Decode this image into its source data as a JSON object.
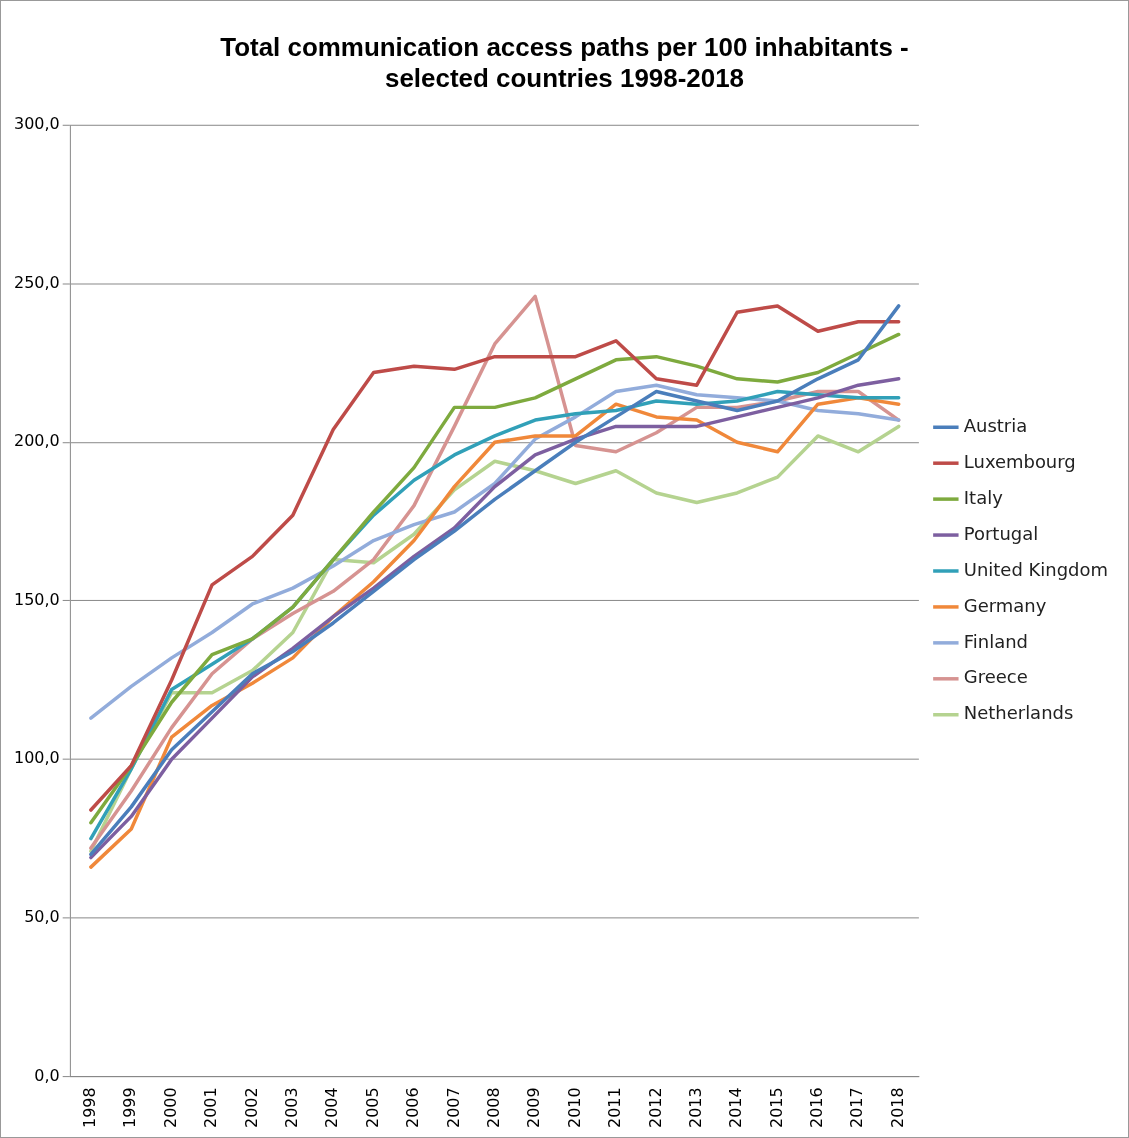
{
  "chart_data": {
    "type": "line",
    "title": "Total communication access paths per 100 inhabitants - selected countries 1998-2018",
    "categories": [
      "1998",
      "1999",
      "2000",
      "2001",
      "2002",
      "2003",
      "2004",
      "2005",
      "2006",
      "2007",
      "2008",
      "2009",
      "2010",
      "2011",
      "2012",
      "2013",
      "2014",
      "2015",
      "2016",
      "2017",
      "2018"
    ],
    "series": [
      {
        "name": "Austria",
        "color": "#4a7ebb",
        "values": [
          70,
          85,
          103,
          115,
          127,
          134,
          143,
          153,
          163,
          172,
          182,
          191,
          200,
          208,
          216,
          213,
          210,
          213,
          220,
          226,
          243
        ]
      },
      {
        "name": "Luxembourg",
        "color": "#be4b48",
        "values": [
          84,
          98,
          125,
          155,
          164,
          177,
          204,
          222,
          224,
          223,
          227,
          227,
          227,
          232,
          220,
          218,
          241,
          243,
          235,
          238,
          238
        ]
      },
      {
        "name": "Italy",
        "color": "#7eaa3e",
        "values": [
          80,
          98,
          118,
          133,
          138,
          148,
          163,
          178,
          192,
          211,
          211,
          214,
          220,
          226,
          227,
          224,
          220,
          219,
          222,
          228,
          234
        ]
      },
      {
        "name": "Portugal",
        "color": "#7d5fa0",
        "values": [
          69,
          82,
          100,
          113,
          126,
          135,
          145,
          154,
          164,
          173,
          186,
          196,
          201,
          205,
          205,
          205,
          208,
          211,
          214,
          218,
          220
        ]
      },
      {
        "name": "United Kingdom",
        "color": "#31a0b8",
        "values": [
          75,
          97,
          122,
          130,
          138,
          148,
          163,
          177,
          188,
          196,
          202,
          207,
          209,
          210,
          213,
          212,
          213,
          216,
          215,
          214,
          214
        ]
      },
      {
        "name": "Germany",
        "color": "#f0883a",
        "values": [
          66,
          78,
          107,
          117,
          124,
          132,
          145,
          156,
          169,
          186,
          200,
          202,
          202,
          212,
          208,
          207,
          200,
          197,
          212,
          214,
          212
        ]
      },
      {
        "name": "Finland",
        "color": "#92acdb",
        "values": [
          113,
          123,
          132,
          140,
          149,
          154,
          161,
          169,
          174,
          178,
          187,
          201,
          208,
          216,
          218,
          215,
          214,
          213,
          210,
          209,
          207
        ]
      },
      {
        "name": "Greece",
        "color": "#d69391",
        "values": [
          72,
          90,
          110,
          127,
          138,
          146,
          153,
          163,
          180,
          205,
          231,
          246,
          199,
          197,
          203,
          211,
          211,
          213,
          216,
          216,
          207
        ]
      },
      {
        "name": "Netherlands",
        "color": "#b5d390",
        "values": [
          71,
          97,
          121,
          121,
          128,
          140,
          163,
          162,
          171,
          185,
          194,
          191,
          187,
          191,
          184,
          181,
          184,
          189,
          202,
          197,
          205
        ]
      }
    ],
    "ylim": [
      0,
      300
    ],
    "yticks": [
      {
        "value": 0,
        "label": "0,0"
      },
      {
        "value": 50,
        "label": "50,0"
      },
      {
        "value": 100,
        "label": "100,0"
      },
      {
        "value": 150,
        "label": "150,0"
      },
      {
        "value": 200,
        "label": "200,0"
      },
      {
        "value": 250,
        "label": "250,0"
      },
      {
        "value": 300,
        "label": "300,0"
      }
    ],
    "grid": "y",
    "legend": "right",
    "marker": "none",
    "line_style": "solid"
  }
}
